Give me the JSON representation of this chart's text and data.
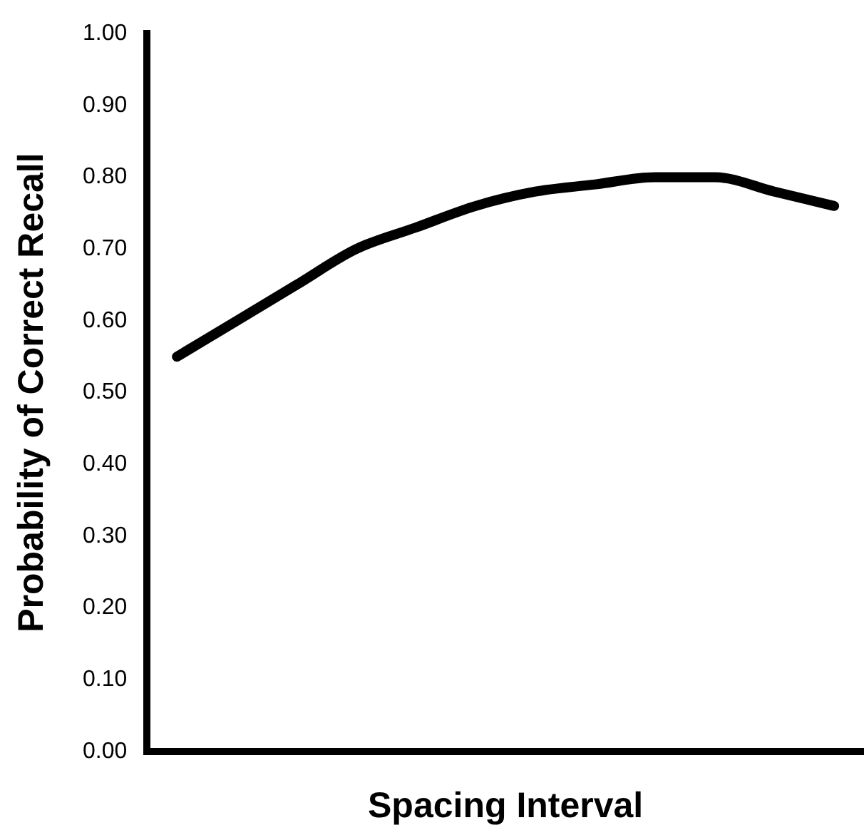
{
  "chart_data": {
    "type": "line",
    "xlabel": "Spacing Interval",
    "ylabel": "Probability of Correct Recall",
    "categories": [
      null,
      null,
      null,
      null,
      null,
      null,
      null,
      null,
      null,
      null,
      null,
      null
    ],
    "series": [
      {
        "color": "#000000",
        "values": [
          0.55,
          0.6,
          0.65,
          0.7,
          0.73,
          0.76,
          0.78,
          0.79,
          0.8,
          0.8,
          0.78,
          0.76
        ]
      }
    ],
    "ylim": [
      0,
      1
    ],
    "yticks": [
      {
        "value": 0,
        "label": "0.00"
      },
      {
        "value": 0.1,
        "label": "0.10"
      },
      {
        "value": 0.2,
        "label": "0.20"
      },
      {
        "value": 0.3,
        "label": "0.30"
      },
      {
        "value": 0.4,
        "label": "0.40"
      },
      {
        "value": 0.5,
        "label": "0.50"
      },
      {
        "value": 0.6,
        "label": "0.60"
      },
      {
        "value": 0.7,
        "label": "0.70"
      },
      {
        "value": 0.8,
        "label": "0.80"
      },
      {
        "value": 0.9,
        "label": "0.90"
      },
      {
        "value": 1,
        "label": "1.00"
      }
    ],
    "tick_labels": "y",
    "grid": false,
    "legend": false,
    "marker": "none",
    "line_style": "solid"
  }
}
